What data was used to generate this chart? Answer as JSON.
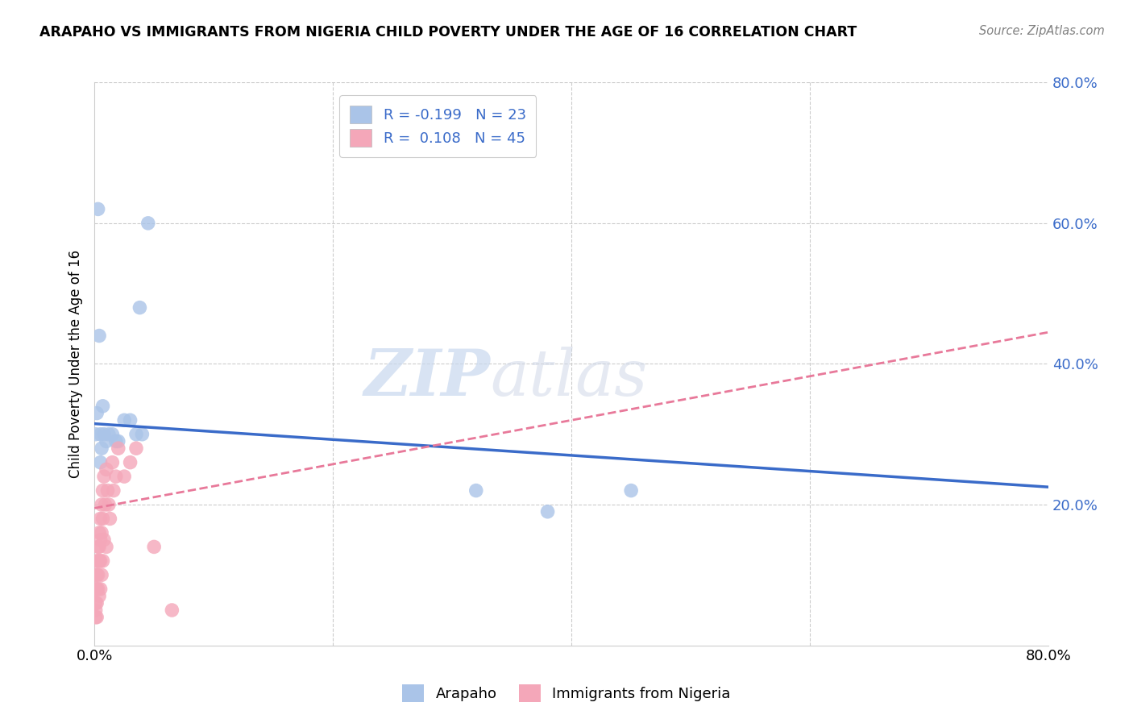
{
  "title": "ARAPAHO VS IMMIGRANTS FROM NIGERIA CHILD POVERTY UNDER THE AGE OF 16 CORRELATION CHART",
  "source": "Source: ZipAtlas.com",
  "ylabel": "Child Poverty Under the Age of 16",
  "legend_labels": [
    "Arapaho",
    "Immigrants from Nigeria"
  ],
  "r_arapaho": "-0.199",
  "n_arapaho": "23",
  "r_nigeria": "0.108",
  "n_nigeria": "45",
  "arapaho_color": "#aac4e8",
  "nigeria_color": "#f4a7b9",
  "arapaho_line_color": "#3a6bc9",
  "nigeria_line_color": "#e8799a",
  "arapaho_x": [
    0.001,
    0.002,
    0.003,
    0.004,
    0.005,
    0.005,
    0.006,
    0.007,
    0.008,
    0.01,
    0.012,
    0.015,
    0.018,
    0.02,
    0.025,
    0.03,
    0.035,
    0.038,
    0.04,
    0.045,
    0.32,
    0.38,
    0.45
  ],
  "arapaho_y": [
    0.3,
    0.33,
    0.62,
    0.44,
    0.3,
    0.26,
    0.28,
    0.34,
    0.3,
    0.29,
    0.3,
    0.3,
    0.29,
    0.29,
    0.32,
    0.32,
    0.3,
    0.48,
    0.3,
    0.6,
    0.22,
    0.19,
    0.22
  ],
  "nigeria_x": [
    0.001,
    0.001,
    0.001,
    0.001,
    0.001,
    0.002,
    0.002,
    0.002,
    0.002,
    0.002,
    0.003,
    0.003,
    0.003,
    0.003,
    0.004,
    0.004,
    0.004,
    0.004,
    0.005,
    0.005,
    0.005,
    0.005,
    0.006,
    0.006,
    0.006,
    0.007,
    0.007,
    0.007,
    0.008,
    0.008,
    0.009,
    0.01,
    0.01,
    0.011,
    0.012,
    0.013,
    0.015,
    0.016,
    0.018,
    0.02,
    0.025,
    0.03,
    0.035,
    0.05,
    0.065
  ],
  "nigeria_y": [
    0.1,
    0.08,
    0.06,
    0.05,
    0.04,
    0.12,
    0.1,
    0.08,
    0.06,
    0.04,
    0.14,
    0.12,
    0.1,
    0.08,
    0.16,
    0.14,
    0.12,
    0.07,
    0.18,
    0.15,
    0.12,
    0.08,
    0.2,
    0.16,
    0.1,
    0.22,
    0.18,
    0.12,
    0.24,
    0.15,
    0.2,
    0.25,
    0.14,
    0.22,
    0.2,
    0.18,
    0.26,
    0.22,
    0.24,
    0.28,
    0.24,
    0.26,
    0.28,
    0.14,
    0.05
  ],
  "arapaho_line_x": [
    0.0,
    0.8
  ],
  "arapaho_line_y": [
    0.315,
    0.225
  ],
  "nigeria_line_x": [
    0.0,
    0.8
  ],
  "nigeria_line_y": [
    0.195,
    0.445
  ],
  "xlim": [
    0,
    0.8
  ],
  "ylim": [
    0,
    0.8
  ],
  "yticks": [
    0.0,
    0.2,
    0.4,
    0.6,
    0.8
  ],
  "ytick_labels": [
    "",
    "20.0%",
    "40.0%",
    "60.0%",
    "80.0%"
  ],
  "background_color": "#ffffff",
  "plot_bg_color": "#ffffff",
  "grid_color": "#cccccc",
  "marker_size": 160
}
